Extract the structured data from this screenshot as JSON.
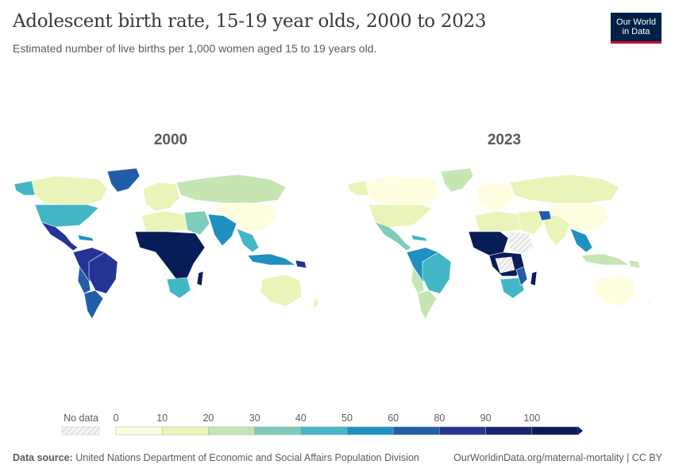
{
  "header": {
    "title": "Adolescent birth rate, 15-19 year olds, 2000 to 2023",
    "subtitle": "Estimated number of live births per 1,000 women aged 15 to 19 years old.",
    "logo_line1": "Our World",
    "logo_line2": "in Data"
  },
  "maps": [
    {
      "year": "2000"
    },
    {
      "year": "2023"
    }
  ],
  "legend": {
    "no_data_label": "No data",
    "ticks": [
      "0",
      "10",
      "20",
      "30",
      "40",
      "50",
      "60",
      "80",
      "90",
      "100"
    ],
    "colors": [
      "#fefde0",
      "#e9f4b8",
      "#c5e6b3",
      "#7fccbb",
      "#42b6c4",
      "#1e91c0",
      "#225ea8",
      "#253494",
      "#1a2270",
      "#081d58"
    ],
    "no_data_color": "#eeeeee"
  },
  "footer": {
    "source_label": "Data source:",
    "source_text": "United Nations Department of Economic and Social Affairs Population Division",
    "url": "OurWorldinData.org/maternal-mortality | CC BY"
  }
}
